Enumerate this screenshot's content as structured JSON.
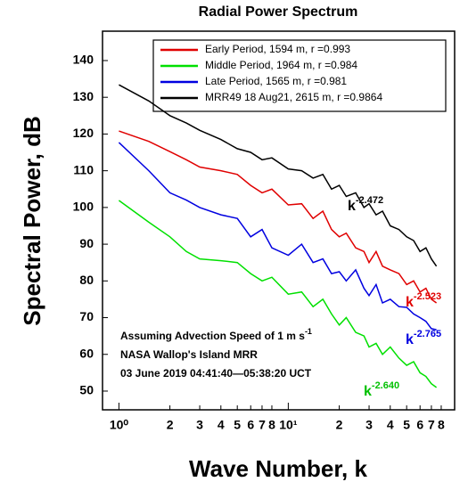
{
  "chart_data": {
    "type": "line",
    "title": "Radial Power Spectrum",
    "x_label": "Wave Number, k",
    "y_label": "Spectral Power, dB",
    "log_x": true,
    "xlim": [
      0.8,
      96
    ],
    "ylim": [
      44.9,
      148
    ],
    "xticks": [
      {
        "value": 1,
        "label": "10⁰"
      },
      2,
      3,
      4,
      5,
      6,
      7,
      8,
      {
        "value": 10,
        "label": "10¹"
      },
      {
        "value": 20,
        "label": "2"
      },
      {
        "value": 30,
        "label": "3"
      },
      {
        "value": 40,
        "label": "4"
      },
      {
        "value": 50,
        "label": "5"
      },
      {
        "value": 60,
        "label": "6"
      },
      {
        "value": 70,
        "label": "7"
      },
      {
        "value": 80,
        "label": "8"
      }
    ],
    "yticks": [
      50,
      60,
      70,
      80,
      90,
      100,
      110,
      120,
      130,
      140
    ],
    "x": [
      1,
      1.5,
      2,
      2.5,
      3,
      4,
      5,
      6,
      7,
      8,
      10,
      12,
      14,
      16,
      18,
      20,
      22,
      25,
      28,
      30,
      33,
      36,
      40,
      45,
      50,
      55,
      60,
      65,
      70,
      75
    ],
    "series": [
      {
        "name": "Early Period, 1594 m, r =0.993",
        "color": "#e00000",
        "values": [
          120.8,
          118,
          115.2,
          113,
          111,
          110,
          109,
          106,
          104,
          105,
          100.7,
          101,
          97,
          99,
          94,
          92,
          93,
          89,
          88,
          85,
          88,
          84,
          83,
          82,
          79,
          80,
          77,
          78,
          75,
          74
        ]
      },
      {
        "name": "Middle Period, 1964 m, r =0.984",
        "color": "#00e000",
        "values": [
          101.9,
          96,
          92,
          88,
          86,
          85.5,
          85,
          82,
          80,
          81,
          76.4,
          77,
          73,
          75,
          71,
          68,
          70,
          66,
          65,
          62,
          63,
          60,
          62,
          59,
          57,
          58,
          55,
          54,
          52,
          51
        ]
      },
      {
        "name": "Late Period, 1565 m, r =0.981",
        "color": "#0000e0",
        "values": [
          117.7,
          110,
          104,
          102,
          100,
          98,
          97,
          92,
          94,
          89,
          87,
          90,
          85,
          86,
          82,
          82.5,
          80,
          83,
          78,
          76,
          79,
          74,
          75,
          73,
          72.8,
          71,
          70,
          69,
          67,
          66.7
        ]
      },
      {
        "name": "MRR49 18 Aug21, 2615 m,  r =0.9864",
        "color": "#000000",
        "values": [
          133.4,
          129,
          125,
          123,
          121,
          118.5,
          116,
          115,
          113,
          113.5,
          110.5,
          110,
          108,
          109,
          105,
          106,
          103,
          104,
          100,
          101,
          98,
          99,
          95,
          94,
          92,
          91,
          88,
          89,
          86,
          84
        ]
      }
    ],
    "annotations": [
      {
        "text": "k",
        "exponent": "-2.472",
        "color": "#000000"
      },
      {
        "text": "k",
        "exponent": "-2.523",
        "color": "#e00000"
      },
      {
        "text": "k",
        "exponent": "-2.765",
        "color": "#0000e0"
      },
      {
        "text": "k",
        "exponent": "-2.640",
        "color": "#00c000"
      }
    ],
    "notes": [
      {
        "text": "Assuming Advection Speed of 1 m s",
        "exponent": "-1"
      },
      {
        "text": "NASA Wallop's Island MRR"
      },
      {
        "text": "03 June 2019  04:41:40—05:38:20 UCT"
      }
    ]
  }
}
